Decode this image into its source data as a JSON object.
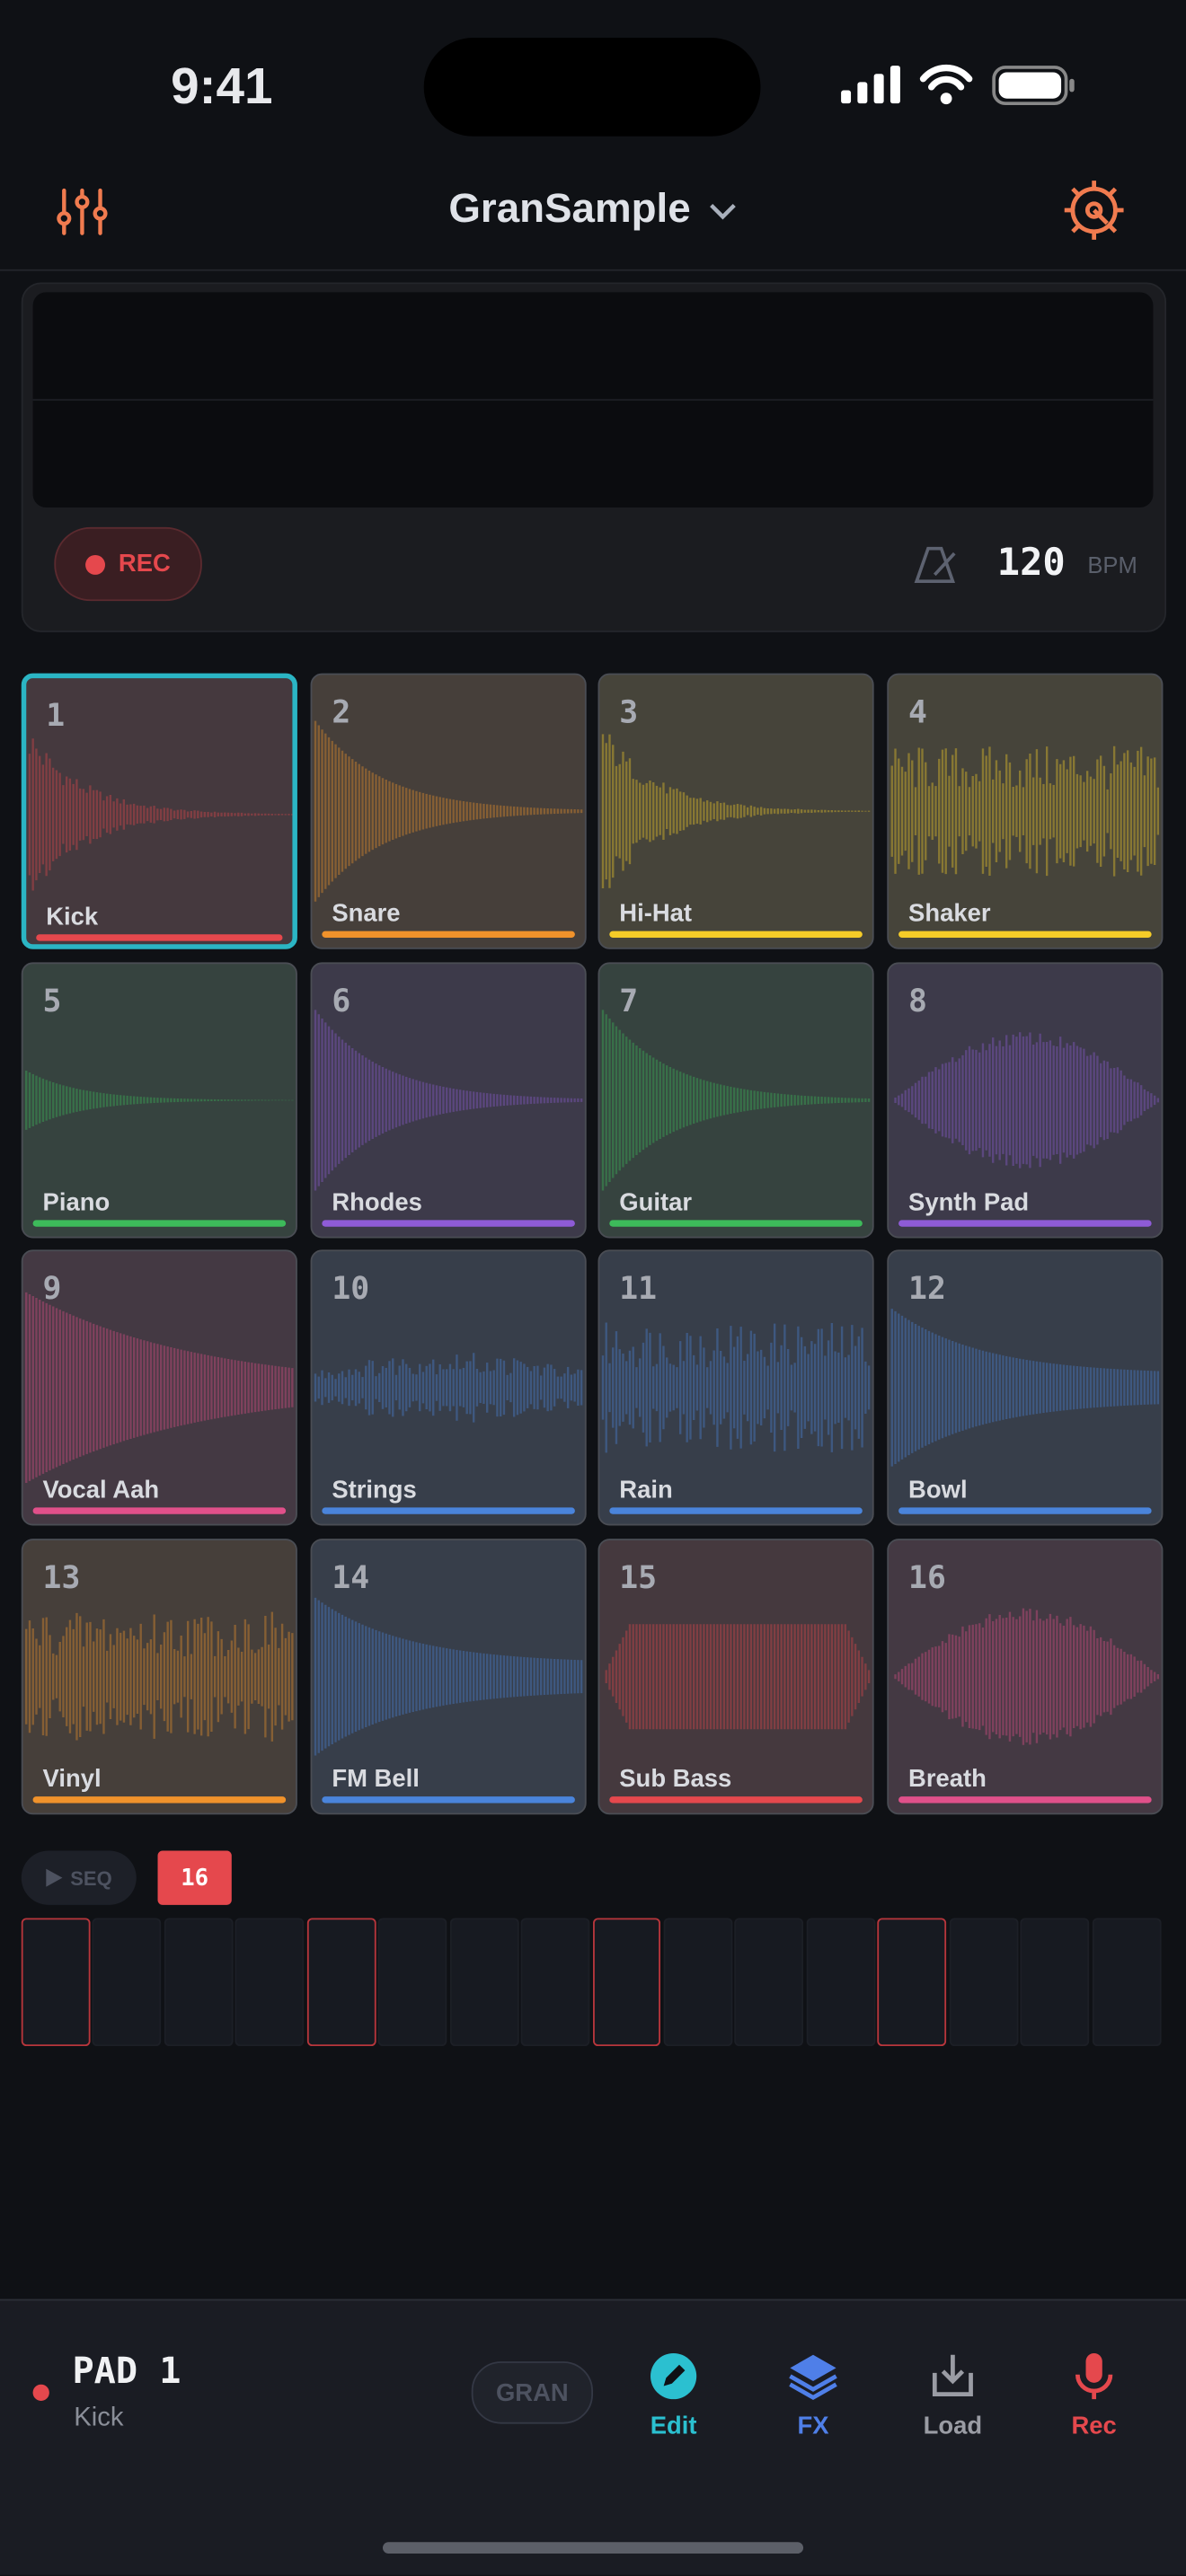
{
  "status_bar": {
    "time": "9:41"
  },
  "header": {
    "title": "GranSample"
  },
  "recorder": {
    "rec_button": "REC",
    "tempo": 120,
    "tempo_unit": "BPM"
  },
  "pads": [
    {
      "number": 1,
      "name": "Kick",
      "color": "#e5484d",
      "selected": true
    },
    {
      "number": 2,
      "name": "Snare",
      "color": "#f0922b",
      "selected": false
    },
    {
      "number": 3,
      "name": "Hi-Hat",
      "color": "#f5cc28",
      "selected": false
    },
    {
      "number": 4,
      "name": "Shaker",
      "color": "#f5cc28",
      "selected": false
    },
    {
      "number": 5,
      "name": "Piano",
      "color": "#3dba5a",
      "selected": false
    },
    {
      "number": 6,
      "name": "Rhodes",
      "color": "#8e5bd6",
      "selected": false
    },
    {
      "number": 7,
      "name": "Guitar",
      "color": "#3dba5a",
      "selected": false
    },
    {
      "number": 8,
      "name": "Synth Pad",
      "color": "#8e5bd6",
      "selected": false
    },
    {
      "number": 9,
      "name": "Vocal Aah",
      "color": "#e0508a",
      "selected": false
    },
    {
      "number": 10,
      "name": "Strings",
      "color": "#4a84db",
      "selected": false
    },
    {
      "number": 11,
      "name": "Rain",
      "color": "#4a84db",
      "selected": false
    },
    {
      "number": 12,
      "name": "Bowl",
      "color": "#4a84db",
      "selected": false
    },
    {
      "number": 13,
      "name": "Vinyl",
      "color": "#f0922b",
      "selected": false
    },
    {
      "number": 14,
      "name": "FM Bell",
      "color": "#4a84db",
      "selected": false
    },
    {
      "number": 15,
      "name": "Sub Bass",
      "color": "#e5484d",
      "selected": false
    },
    {
      "number": 16,
      "name": "Breath",
      "color": "#e0508a",
      "selected": false
    }
  ],
  "sequencer": {
    "button": "SEQ",
    "length": 16,
    "active_steps": [
      true,
      false,
      false,
      false,
      true,
      false,
      false,
      false,
      true,
      false,
      false,
      false,
      true,
      false,
      false,
      false
    ]
  },
  "footer": {
    "pad_title": "PAD 1",
    "pad_name": "Kick",
    "gran_button": "GRAN",
    "tabs": [
      {
        "label": "Edit",
        "color": "#2bc0d0"
      },
      {
        "label": "FX",
        "color": "#4f7fe8"
      },
      {
        "label": "Load",
        "color": "#9a9ca4"
      },
      {
        "label": "Rec",
        "color": "#e5484d"
      }
    ]
  }
}
